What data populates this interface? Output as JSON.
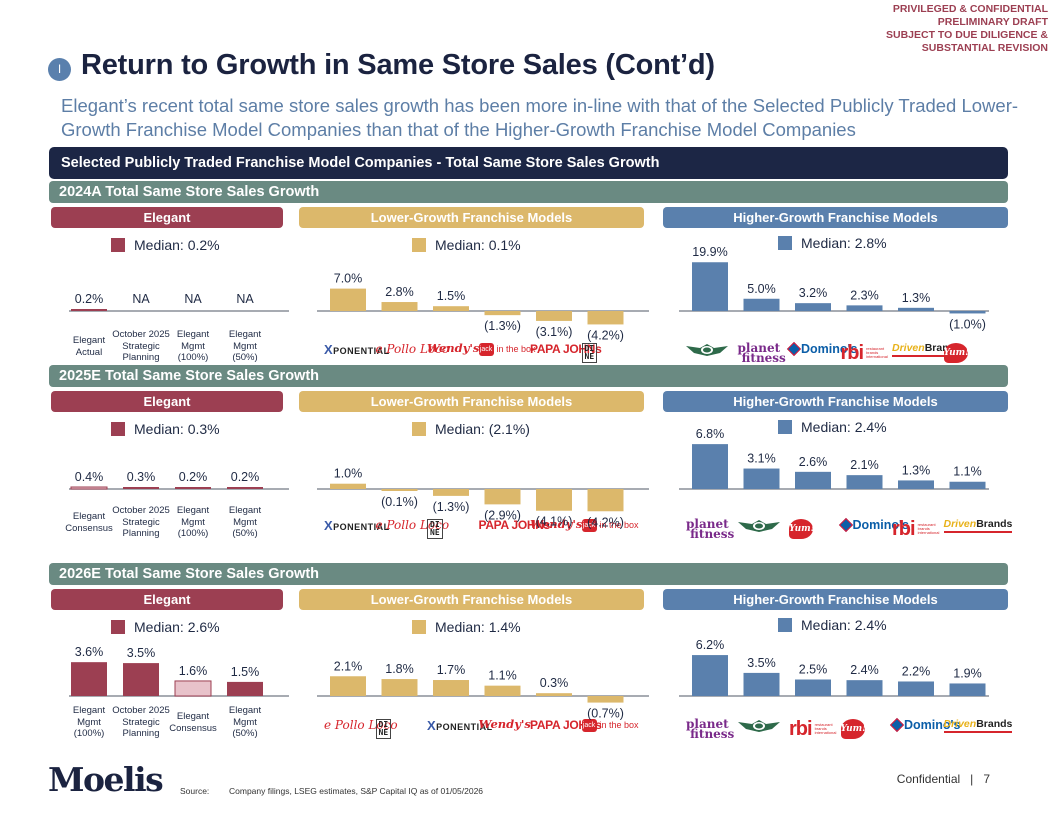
{
  "confidential_note": [
    "PRIVILEGED & CONFIDENTIAL",
    "PRELIMINARY DRAFT",
    "SUBJECT TO DUE DILIGENCE &",
    "SUBSTANTIAL REVISION"
  ],
  "section_badge": "I",
  "title": "Return to Growth in Same Store Sales (Cont’d)",
  "subtitle": "Elegant’s recent total same store sales growth has been more in-line with that of the Selected Publicly Traded Lower-Growth Franchise Model Companies than that of the Higher-Growth Franchise Model Companies",
  "main_header": "Selected Publicly Traded Franchise Model Companies - Total Same Store Sales Growth",
  "group_labels": {
    "elegant": "Elegant",
    "lower": "Lower-Growth Franchise Models",
    "higher": "Higher-Growth Franchise Models"
  },
  "colors": {
    "elegant": "#9c3f52",
    "elegant_light": "#e8c2ca",
    "lower": "#dcb86b",
    "higher": "#5a80ad",
    "navy": "#1c2645",
    "teal": "#6a8a82"
  },
  "chart_data": [
    {
      "type": "bar",
      "title": "2024A Total Same Store Sales Growth",
      "unit": "%",
      "groups": [
        {
          "name": "Elegant",
          "median_label": "Median: 0.2%",
          "categories": [
            "Elegant Actual",
            "October 2025 Strategic Planning",
            "Elegant Mgmt (100%)",
            "Elegant Mgmt (50%)"
          ],
          "category_lines": [
            [
              "Elegant",
              "Actual"
            ],
            [
              "October 2025",
              "Strategic",
              "Planning"
            ],
            [
              "Elegant",
              "Mgmt",
              "(100%)"
            ],
            [
              "Elegant",
              "Mgmt",
              "(50%)"
            ]
          ],
          "values": [
            0.2,
            null,
            null,
            null
          ],
          "labels": [
            "0.2%",
            "NA",
            "NA",
            "NA"
          ],
          "highlight": [
            false,
            false,
            false,
            false
          ]
        },
        {
          "name": "Lower-Growth Franchise Models",
          "median_label": "Median: 0.1%",
          "categories": [
            "Xponential",
            "El Pollo Loco",
            "Wendy's",
            "Jack in the Box",
            "Papa John's",
            "Dine Brands"
          ],
          "values": [
            7.0,
            2.8,
            1.5,
            -1.3,
            -3.1,
            -4.2
          ],
          "labels": [
            "7.0%",
            "2.8%",
            "1.5%",
            "(1.3%)",
            "(3.1%)",
            "(4.2%)"
          ]
        },
        {
          "name": "Higher-Growth Franchise Models",
          "median_label": "Median: 2.8%",
          "categories": [
            "Wingstop",
            "Planet Fitness",
            "Domino's",
            "RBI",
            "Driven Brands",
            "Yum!"
          ],
          "values": [
            19.9,
            5.0,
            3.2,
            2.3,
            1.3,
            -1.0
          ],
          "labels": [
            "19.9%",
            "5.0%",
            "3.2%",
            "2.3%",
            "1.3%",
            "(1.0%)"
          ]
        }
      ]
    },
    {
      "type": "bar",
      "title": "2025E Total Same Store Sales Growth",
      "unit": "%",
      "groups": [
        {
          "name": "Elegant",
          "median_label": "Median: 0.3%",
          "categories": [
            "Elegant Consensus",
            "October 2025 Strategic Planning",
            "Elegant Mgmt (100%)",
            "Elegant Mgmt (50%)"
          ],
          "category_lines": [
            [
              "Elegant",
              "Consensus"
            ],
            [
              "October 2025",
              "Strategic",
              "Planning"
            ],
            [
              "Elegant",
              "Mgmt",
              "(100%)"
            ],
            [
              "Elegant",
              "Mgmt",
              "(50%)"
            ]
          ],
          "values": [
            0.4,
            0.3,
            0.2,
            0.2
          ],
          "labels": [
            "0.4%",
            "0.3%",
            "0.2%",
            "0.2%"
          ],
          "highlight": [
            true,
            false,
            false,
            false
          ]
        },
        {
          "name": "Lower-Growth Franchise Models",
          "median_label": "Median: (2.1%)",
          "categories": [
            "Xponential",
            "El Pollo Loco",
            "Dine Brands",
            "Papa John's",
            "Wendy's",
            "Jack in the Box"
          ],
          "values": [
            1.0,
            -0.1,
            -1.3,
            -2.9,
            -4.1,
            -4.2
          ],
          "labels": [
            "1.0%",
            "(0.1%)",
            "(1.3%)",
            "(2.9%)",
            "(4.1%)",
            "(4.2%)"
          ]
        },
        {
          "name": "Higher-Growth Franchise Models",
          "median_label": "Median: 2.4%",
          "categories": [
            "Planet Fitness",
            "Wingstop",
            "Yum!",
            "Domino's",
            "RBI",
            "Driven Brands"
          ],
          "values": [
            6.8,
            3.1,
            2.6,
            2.1,
            1.3,
            1.1
          ],
          "labels": [
            "6.8%",
            "3.1%",
            "2.6%",
            "2.1%",
            "1.3%",
            "1.1%"
          ]
        }
      ]
    },
    {
      "type": "bar",
      "title": "2026E Total Same Store Sales Growth",
      "unit": "%",
      "groups": [
        {
          "name": "Elegant",
          "median_label": "Median: 2.6%",
          "categories": [
            "Elegant Mgmt (100%)",
            "October 2025 Strategic Planning",
            "Elegant Consensus",
            "Elegant Mgmt (50%)"
          ],
          "category_lines": [
            [
              "Elegant",
              "Mgmt",
              "(100%)"
            ],
            [
              "October 2025",
              "Strategic",
              "Planning"
            ],
            [
              "Elegant",
              "Consensus"
            ],
            [
              "Elegant",
              "Mgmt",
              "(50%)"
            ]
          ],
          "values": [
            3.6,
            3.5,
            1.6,
            1.5
          ],
          "labels": [
            "3.6%",
            "3.5%",
            "1.6%",
            "1.5%"
          ],
          "highlight": [
            false,
            false,
            true,
            false
          ]
        },
        {
          "name": "Lower-Growth Franchise Models",
          "median_label": "Median: 1.4%",
          "categories": [
            "El Pollo Loco",
            "Dine Brands",
            "Xponential",
            "Wendy's",
            "Papa John's",
            "Jack in the Box"
          ],
          "values": [
            2.1,
            1.8,
            1.7,
            1.1,
            0.3,
            -0.7
          ],
          "labels": [
            "2.1%",
            "1.8%",
            "1.7%",
            "1.1%",
            "0.3%",
            "(0.7%)"
          ]
        },
        {
          "name": "Higher-Growth Franchise Models",
          "median_label": "Median: 2.4%",
          "categories": [
            "Planet Fitness",
            "Wingstop",
            "RBI",
            "Yum!",
            "Domino's",
            "Driven Brands"
          ],
          "values": [
            6.2,
            3.5,
            2.5,
            2.4,
            2.2,
            1.9
          ],
          "labels": [
            "6.2%",
            "3.5%",
            "2.5%",
            "2.4%",
            "2.2%",
            "1.9%"
          ]
        }
      ]
    }
  ],
  "logo_text": {
    "Xponential": "PONENTIAL",
    "El Pollo Loco": "e Pollo Loco",
    "Wendy's": "Wendy's",
    "Jack in the Box": "in the box",
    "Papa John's": "PAPA JOHNs",
    "Dine Brands": "DI NE",
    "Wingstop": "Wingstop",
    "Planet Fitness": "planet fitness",
    "Domino's": "Domino's",
    "RBI": "rbi",
    "Driven Brands": "Driven Brands",
    "Yum!": "Yum!"
  },
  "footer": {
    "logo": "Moelis",
    "source_label": "Source:",
    "source_text": "Company filings, LSEG estimates, S&P Capital IQ as of 01/05/2026",
    "confidential": "Confidential",
    "page_number": "7"
  }
}
